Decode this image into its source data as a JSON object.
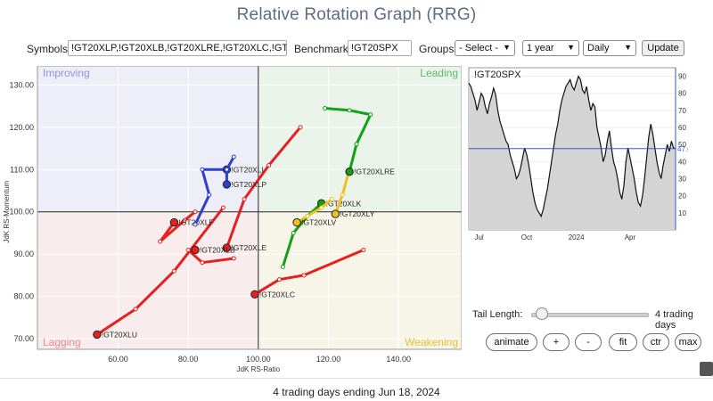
{
  "header": {
    "title": "Relative Rotation Graph (RRG)"
  },
  "controls": {
    "symbols_label": "Symbols:",
    "symbols_value": "!GT20XLP,!GT20XLB,!GT20XLRE,!GT20XLC,!GT2",
    "benchmark_label": "Benchmark:",
    "benchmark_value": "!GT20SPX",
    "groups_label": "Groups:",
    "groups_value": "- Select -",
    "period_value": "1 year",
    "frequency_value": "Daily",
    "update_label": "Update",
    "tail_length_label": "Tail Length:",
    "tail_length_value": "4 trading days",
    "tail_length_fraction": 0.09,
    "buttons": {
      "animate": "animate",
      "plus": "+",
      "minus": "-",
      "fit": "fit",
      "ctr": "ctr",
      "max": "max"
    }
  },
  "footer": {
    "caption": "4 trading days ending Jun 18, 2024"
  },
  "chart_data": [
    {
      "type": "scatter",
      "xlabel": "JdK RS-Ratio",
      "ylabel": "JdK RS-Momentum",
      "xlim": [
        37,
        158
      ],
      "ylim": [
        67.5,
        134.5
      ],
      "xticks": [
        "60.00",
        "80.00",
        "100.00",
        "120.00",
        "140.00"
      ],
      "yticks": [
        "70.00",
        "80.00",
        "90.00",
        "100.00",
        "110.00",
        "120.00",
        "130.00"
      ],
      "quadrants": {
        "top_left": "Improving",
        "top_right": "Leading",
        "bottom_left": "Lagging",
        "bottom_right": "Weakening"
      },
      "quadrant_colors": {
        "top_left": "#eeeef8",
        "top_right": "#eaf4ea",
        "bottom_left": "#f9ecec",
        "bottom_right": "#f7f5e8"
      },
      "quadrant_label_colors": {
        "top_left": "#8f96db",
        "top_right": "#63b86a",
        "bottom_left": "#e68c8c",
        "bottom_right": "#e8bf36"
      },
      "series": [
        {
          "name": "!GT20XLU",
          "color": "#e62020",
          "points": [
            [
              90,
              101
            ],
            [
              76,
              86
            ],
            [
              65,
              77
            ],
            [
              54,
              71
            ]
          ]
        },
        {
          "name": "!GT20XLF",
          "color": "#e62020",
          "points": [
            [
              82,
              100
            ],
            [
              79,
              98
            ],
            [
              72,
              93
            ],
            [
              76,
              97.5
            ]
          ]
        },
        {
          "name": "!GT20XLE",
          "color": "#e62020",
          "points": [
            [
              112,
              120
            ],
            [
              103,
              111
            ],
            [
              96,
              103
            ],
            [
              91,
              91.5
            ]
          ]
        },
        {
          "name": "!GT20XLB",
          "color": "#e62020",
          "points": [
            [
              93,
              89
            ],
            [
              84,
              88
            ],
            [
              80,
              91
            ],
            [
              82,
              91
            ]
          ]
        },
        {
          "name": "!GT20XLC",
          "color": "#e62020",
          "points": [
            [
              130,
              91
            ],
            [
              113,
              85
            ],
            [
              106,
              84
            ],
            [
              99,
              80.5
            ]
          ]
        },
        {
          "name": "!GT20XLI",
          "color": "#2e3fd0",
          "points": [
            [
              82,
              97
            ],
            [
              86,
              104
            ],
            [
              84,
              110
            ],
            [
              91,
              110
            ]
          ]
        },
        {
          "name": "!GT20XLP",
          "color": "#2e3fd0",
          "points": [
            [
              93,
              113
            ],
            [
              91,
              110
            ],
            [
              91,
              106.5
            ]
          ]
        },
        {
          "name": "!GT20XLK",
          "color": "#14a014",
          "points": [
            [
              107,
              87
            ],
            [
              110,
              95
            ],
            [
              114,
              99
            ],
            [
              118,
              102
            ]
          ]
        },
        {
          "name": "!GT20XLV",
          "color": "#f0c020",
          "points": [
            [
              121,
              103
            ],
            [
              118,
              101
            ],
            [
              114,
              99
            ],
            [
              111,
              97.5
            ]
          ]
        },
        {
          "name": "!GT20XLY",
          "color": "#f0c020",
          "points": [
            [
              126,
              110
            ],
            [
              124,
              104
            ],
            [
              122,
              99.5
            ]
          ]
        },
        {
          "name": "!GT20XLRE",
          "color": "#14a014",
          "points": [
            [
              119,
              124.5
            ],
            [
              126,
              124
            ],
            [
              132,
              123
            ],
            [
              128,
              116
            ],
            [
              126,
              109.5
            ]
          ]
        }
      ]
    },
    {
      "type": "line",
      "title": "!GT20SPX",
      "xticks": [
        "Jul",
        "Oct",
        "2024",
        "Apr"
      ],
      "yticks": [
        "10",
        "20",
        "30",
        "40",
        "50",
        "60",
        "70",
        "80",
        "90"
      ],
      "ylim": [
        0,
        95
      ],
      "current_value": "47.60",
      "values": [
        86,
        84,
        80,
        76,
        70,
        75,
        80,
        78,
        72,
        68,
        74,
        78,
        83,
        79,
        70,
        64,
        60,
        56,
        52,
        50,
        44,
        40,
        36,
        30,
        32,
        36,
        42,
        48,
        44,
        38,
        30,
        22,
        16,
        12,
        10,
        8,
        12,
        18,
        24,
        32,
        40,
        48,
        56,
        62,
        70,
        76,
        80,
        84,
        86,
        88,
        84,
        82,
        86,
        90,
        88,
        82,
        80,
        84,
        76,
        70,
        74,
        72,
        60,
        54,
        48,
        40,
        44,
        52,
        58,
        48,
        40,
        36,
        30,
        22,
        18,
        26,
        40,
        48,
        42,
        36,
        30,
        22,
        16,
        14,
        20,
        30,
        42,
        54,
        62,
        56,
        48,
        40,
        34,
        30,
        38,
        44,
        50,
        46,
        52,
        48,
        47.6
      ]
    }
  ]
}
